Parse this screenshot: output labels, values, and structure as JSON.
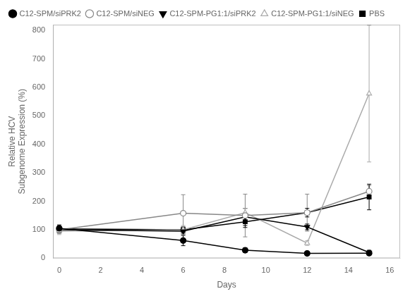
{
  "chart_data": {
    "type": "line",
    "xlabel": "Days",
    "ylabel": "Relative HCV\nSubgenome Expression (%)",
    "xlim": [
      -0.3,
      16.5
    ],
    "ylim": [
      0,
      820
    ],
    "xticks": [
      0,
      2,
      4,
      6,
      8,
      10,
      12,
      14,
      16
    ],
    "yticks": [
      0,
      100,
      200,
      300,
      400,
      500,
      600,
      700,
      800
    ],
    "grid": false,
    "legend": "upper left",
    "x": [
      0,
      6,
      9,
      12,
      15
    ],
    "series": [
      {
        "name": "C12-SPM/siPRK2",
        "color": "#000000",
        "marker": "circle",
        "line_style": "solid",
        "values": [
          105,
          62,
          28,
          17,
          18
        ],
        "yerr": [
          12,
          18,
          8,
          5,
          5
        ]
      },
      {
        "name": "C12-SPM/siNEG",
        "color": "#888888",
        "marker": "open-circle",
        "line_style": "solid",
        "values": [
          100,
          158,
          150,
          160,
          235
        ],
        "yerr": [
          10,
          65,
          75,
          65,
          20
        ]
      },
      {
        "name": "C12-SPM-PG1:1/siPRK2",
        "color": "#000000",
        "marker": "triangle-down",
        "line_style": "solid",
        "values": [
          100,
          95,
          145,
          110,
          20
        ],
        "yerr": [
          12,
          10,
          30,
          10,
          8
        ]
      },
      {
        "name": "C12-SPM-PG1:1/siNEG",
        "color": "#aaaaaa",
        "marker": "open-triangle-up",
        "line_style": "solid",
        "values": [
          95,
          100,
          160,
          53,
          578
        ],
        "yerr": [
          12,
          15,
          15,
          8,
          240
        ]
      },
      {
        "name": "PBS",
        "color": "#000000",
        "marker": "square",
        "line_style": "solid",
        "values": [
          103,
          100,
          128,
          160,
          215
        ],
        "yerr": [
          10,
          10,
          20,
          15,
          45
        ]
      }
    ]
  }
}
